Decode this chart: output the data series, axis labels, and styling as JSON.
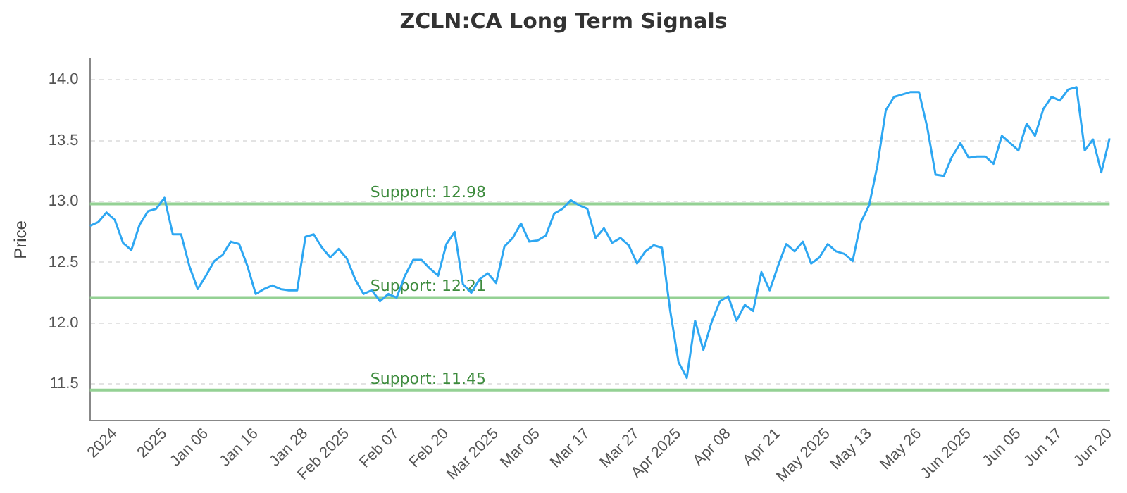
{
  "chart_data": {
    "type": "line",
    "title": "ZCLN:CA Long Term Signals",
    "ylabel": "Price",
    "categories": [
      null,
      null,
      null,
      "2024",
      null,
      null,
      null,
      null,
      null,
      "2025",
      null,
      null,
      null,
      null,
      "Jan 06",
      null,
      null,
      null,
      null,
      null,
      "Jan 16",
      null,
      null,
      null,
      null,
      null,
      "Jan 28",
      null,
      null,
      null,
      null,
      "Feb 2025",
      null,
      null,
      null,
      null,
      null,
      "Feb 07",
      null,
      null,
      null,
      null,
      null,
      "Feb 20",
      null,
      null,
      null,
      null,
      null,
      "Mar 2025",
      null,
      null,
      null,
      null,
      "Mar 05",
      null,
      null,
      null,
      null,
      null,
      "Mar 17",
      null,
      null,
      null,
      null,
      null,
      "Mar 27",
      null,
      null,
      null,
      null,
      "Apr 2025",
      null,
      null,
      null,
      null,
      null,
      "Apr 08",
      null,
      null,
      null,
      null,
      null,
      "Apr 21",
      null,
      null,
      null,
      null,
      null,
      "May 2025",
      null,
      null,
      null,
      null,
      "May 13",
      null,
      null,
      null,
      null,
      null,
      "May 26",
      null,
      null,
      null,
      null,
      null,
      "Jun 2025",
      null,
      null,
      null,
      null,
      null,
      "Jun 05",
      null,
      null,
      null,
      null,
      "Jun 17",
      null,
      null,
      null,
      null,
      null,
      "Jun 20"
    ],
    "series": [
      {
        "color": "#2ea7f2",
        "values": [
          12.8,
          12.83,
          12.91,
          12.85,
          12.66,
          12.6,
          12.81,
          12.92,
          12.94,
          13.03,
          12.73,
          12.73,
          12.47,
          12.28,
          12.39,
          12.51,
          12.56,
          12.67,
          12.65,
          12.47,
          12.24,
          12.28,
          12.31,
          12.28,
          12.27,
          12.27,
          12.71,
          12.73,
          12.62,
          12.54,
          12.61,
          12.53,
          12.36,
          12.24,
          12.27,
          12.18,
          12.24,
          12.21,
          12.39,
          12.52,
          12.52,
          12.45,
          12.39,
          12.65,
          12.75,
          12.32,
          12.25,
          12.36,
          12.41,
          12.33,
          12.63,
          12.7,
          12.82,
          12.67,
          12.68,
          12.72,
          12.9,
          12.94,
          13.01,
          12.97,
          12.94,
          12.7,
          12.78,
          12.66,
          12.7,
          12.64,
          12.49,
          12.59,
          12.64,
          12.62,
          12.1,
          11.68,
          11.55,
          12.02,
          11.78,
          12.01,
          12.18,
          12.22,
          12.02,
          12.15,
          12.1,
          12.42,
          12.27,
          12.47,
          12.65,
          12.59,
          12.67,
          12.49,
          12.54,
          12.65,
          12.59,
          12.57,
          12.51,
          12.83,
          12.97,
          13.3,
          13.75,
          13.86,
          13.88,
          13.9,
          13.9,
          13.61,
          13.22,
          13.21,
          13.37,
          13.48,
          13.36,
          13.37,
          13.37,
          13.31,
          13.54,
          13.48,
          13.42,
          13.64,
          13.54,
          13.76,
          13.86,
          13.83,
          13.92,
          13.94,
          13.42,
          13.51,
          13.24,
          13.52
        ]
      }
    ],
    "ylim": [
      11.2,
      14.17
    ],
    "yticks": [
      11.5,
      {
        "value": 12,
        "label": "12.0"
      },
      12.5,
      {
        "value": 13,
        "label": "13.0"
      },
      13.5,
      {
        "value": 14,
        "label": "14.0"
      }
    ],
    "ref_lines": [
      {
        "axis": "y",
        "value": 12.98,
        "label": "Support: 12.98",
        "color": "#94d194"
      },
      {
        "axis": "y",
        "value": 12.21,
        "label": "Support: 12.21",
        "color": "#94d194"
      },
      {
        "axis": "y",
        "value": 11.45,
        "label": "Support: 11.45",
        "color": "#94d194"
      }
    ],
    "grid": "y",
    "legend": false,
    "marker": "none",
    "line_style": "solid"
  }
}
